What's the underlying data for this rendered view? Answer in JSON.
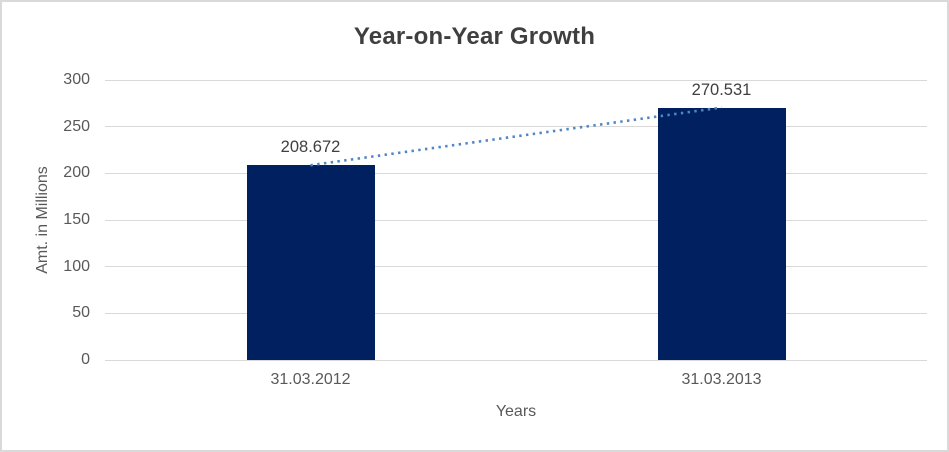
{
  "chart_data": {
    "type": "bar",
    "title": "Year-on-Year Growth",
    "categories": [
      "31.03.2012",
      "31.03.2013"
    ],
    "values": [
      208.672,
      270.531
    ],
    "data_labels": [
      "208.672",
      "270.531"
    ],
    "xlabel": "Years",
    "ylabel": "Amt. in Millions",
    "ylim": [
      0,
      300
    ],
    "yticks": [
      0,
      50,
      100,
      150,
      200,
      250,
      300
    ],
    "grid": true,
    "legend": "none",
    "bar_color": "#002060",
    "trendline": {
      "type": "linear",
      "style": "dotted",
      "color": "#4F86C6"
    },
    "colors": {
      "gridline": "#d9d9d9",
      "axis_line": "#d9d9d9",
      "axis_text": "#595959",
      "title_text": "#3f3f3f",
      "data_label_text": "#404040",
      "chart_border": "#d9d9d9",
      "background": "#ffffff"
    }
  }
}
